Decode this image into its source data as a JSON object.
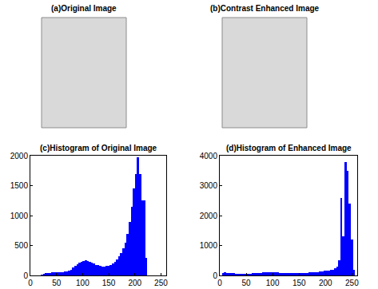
{
  "chart_data": [
    {
      "type": "image",
      "title": "(a)Original Image"
    },
    {
      "type": "image",
      "title": "(b)Contrast Enhanced Image"
    },
    {
      "type": "histogram",
      "title": "(c)Histogram of Original Image",
      "color": "#0000ff",
      "bins": [
        0,
        4,
        8,
        12,
        16,
        20,
        24,
        28,
        32,
        36,
        40,
        44,
        48,
        52,
        56,
        60,
        64,
        68,
        72,
        76,
        80,
        84,
        88,
        92,
        96,
        100,
        104,
        108,
        112,
        116,
        120,
        124,
        128,
        132,
        136,
        140,
        144,
        148,
        152,
        156,
        160,
        164,
        168,
        172,
        176,
        180,
        184,
        188,
        192,
        196,
        200,
        204,
        208,
        212,
        216,
        220,
        224,
        228,
        232,
        236,
        240,
        244,
        248,
        252,
        256
      ],
      "counts": [
        0,
        0,
        0,
        0,
        0,
        10,
        30,
        40,
        45,
        45,
        50,
        50,
        55,
        55,
        60,
        60,
        65,
        70,
        80,
        100,
        130,
        160,
        190,
        210,
        230,
        240,
        250,
        240,
        230,
        220,
        200,
        180,
        170,
        160,
        150,
        150,
        155,
        165,
        180,
        200,
        230,
        270,
        320,
        380,
        450,
        550,
        700,
        900,
        1150,
        1450,
        1700,
        1980,
        1700,
        1250,
        1250,
        300,
        0,
        0,
        0,
        0,
        0,
        0,
        0,
        0
      ],
      "xlim": [
        0,
        260
      ],
      "xticks": [
        0,
        50,
        100,
        150,
        200,
        250
      ],
      "ylim": [
        0,
        2000
      ],
      "yticks": [
        0,
        500,
        1000,
        1500,
        2000
      ],
      "grid": false
    },
    {
      "type": "histogram",
      "title": "(d)Histogram of Enhanced Image",
      "color": "#0000ff",
      "bins": [
        0,
        4,
        8,
        12,
        16,
        20,
        24,
        28,
        32,
        36,
        40,
        44,
        48,
        52,
        56,
        60,
        64,
        68,
        72,
        76,
        80,
        84,
        88,
        92,
        96,
        100,
        104,
        108,
        112,
        116,
        120,
        124,
        128,
        132,
        136,
        140,
        144,
        148,
        152,
        156,
        160,
        164,
        168,
        172,
        176,
        180,
        184,
        188,
        192,
        196,
        200,
        204,
        208,
        212,
        216,
        220,
        224,
        228,
        232,
        236,
        240,
        244,
        248,
        252,
        256
      ],
      "counts": [
        0,
        80,
        100,
        90,
        80,
        70,
        70,
        60,
        60,
        60,
        55,
        55,
        60,
        60,
        60,
        70,
        70,
        70,
        80,
        90,
        100,
        100,
        110,
        110,
        110,
        100,
        100,
        100,
        90,
        90,
        90,
        80,
        80,
        80,
        80,
        80,
        80,
        80,
        80,
        90,
        90,
        90,
        100,
        100,
        110,
        110,
        120,
        130,
        140,
        150,
        160,
        170,
        180,
        200,
        250,
        300,
        500,
        2600,
        1300,
        3800,
        3500,
        2400,
        1200,
        200
      ],
      "xlim": [
        0,
        260
      ],
      "xticks": [
        0,
        50,
        100,
        150,
        200,
        250
      ],
      "ylim": [
        0,
        4000
      ],
      "yticks": [
        0,
        1000,
        2000,
        3000,
        4000
      ],
      "grid": false
    }
  ]
}
